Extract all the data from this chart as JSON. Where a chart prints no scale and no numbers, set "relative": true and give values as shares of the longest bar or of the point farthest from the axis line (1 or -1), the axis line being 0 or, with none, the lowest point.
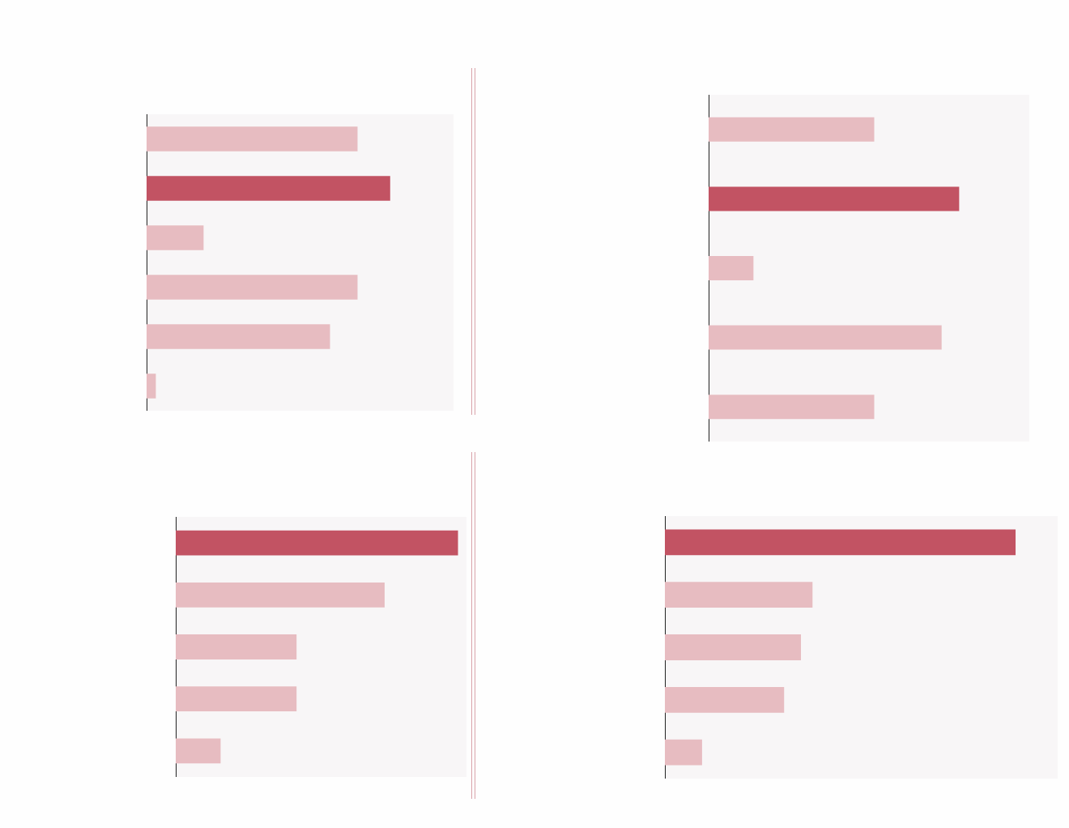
{
  "chart_data": [
    {
      "type": "bar",
      "orientation": "horizontal",
      "relative": true,
      "categories": [
        null,
        null,
        null,
        null,
        null,
        null
      ],
      "values": [
        0.866,
        1,
        0.234,
        0.866,
        0.753,
        0.038
      ],
      "colors": [
        "#e7bcc1",
        "#c25363",
        "#e7bcc1",
        "#e7bcc1",
        "#e7bcc1",
        "#e7bcc1"
      ]
    },
    {
      "type": "bar",
      "orientation": "horizontal",
      "relative": true,
      "categories": [
        null,
        null,
        null,
        null,
        null
      ],
      "values": [
        0.661,
        1,
        0.179,
        0.93,
        0.661
      ],
      "colors": [
        "#e7bcc1",
        "#c25363",
        "#e7bcc1",
        "#e7bcc1",
        "#e7bcc1"
      ]
    },
    {
      "type": "bar",
      "orientation": "horizontal",
      "relative": true,
      "categories": [
        null,
        null,
        null,
        null,
        null
      ],
      "values": [
        1,
        0.74,
        0.428,
        0.428,
        0.159
      ],
      "colors": [
        "#c25363",
        "#e7bcc1",
        "#e7bcc1",
        "#e7bcc1",
        "#e7bcc1"
      ]
    },
    {
      "type": "bar",
      "orientation": "horizontal",
      "relative": true,
      "categories": [
        null,
        null,
        null,
        null,
        null
      ],
      "values": [
        1,
        0.421,
        0.388,
        0.34,
        0.106
      ],
      "colors": [
        "#c25363",
        "#e7bcc1",
        "#e7bcc1",
        "#e7bcc1",
        "#e7bcc1"
      ]
    }
  ]
}
